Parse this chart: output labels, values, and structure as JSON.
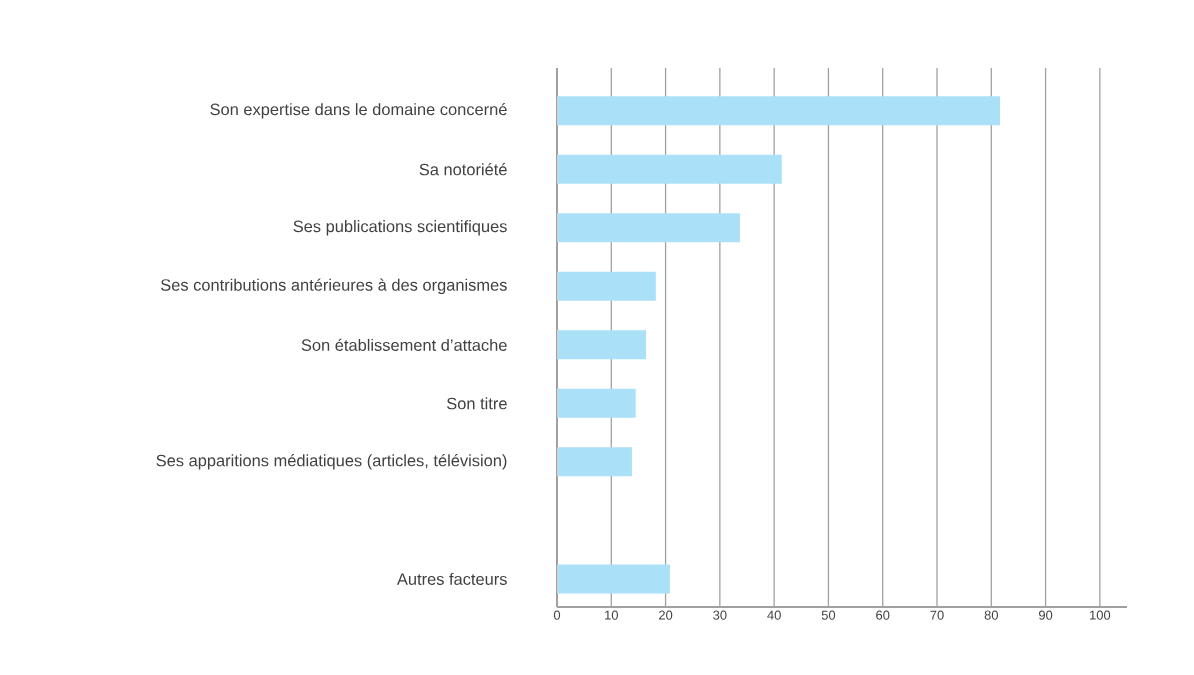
{
  "chart_data": {
    "type": "bar",
    "orientation": "horizontal",
    "categories": [
      "Son expertise dans le domaine concerné",
      "Sa notoriété",
      "Ses publications scientifiques",
      "Ses contributions antérieures à des organismes",
      "Son établissement d’attache",
      "Son titre",
      "Ses apparitions médiatiques (articles, télévision)",
      null,
      "Autres facteurs"
    ],
    "values": [
      81.6,
      41.4,
      33.7,
      18.2,
      16.4,
      14.5,
      13.8,
      null,
      20.8
    ],
    "color": "#aae0f8",
    "xlim": [
      0,
      105
    ],
    "xticks": [
      0,
      10,
      20,
      30,
      40,
      50,
      60,
      70,
      80,
      90,
      100
    ],
    "grid": "x"
  }
}
